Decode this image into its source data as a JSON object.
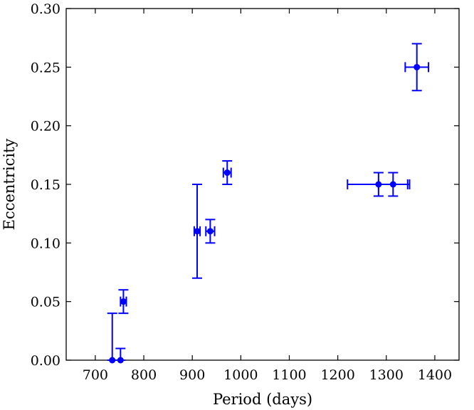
{
  "chart_data": {
    "type": "scatter",
    "title": "",
    "xlabel": "Period (days)",
    "ylabel": "Eccentricity",
    "xlim": [
      640,
      1450
    ],
    "ylim": [
      0.0,
      0.3
    ],
    "xticks": [
      700,
      800,
      900,
      1000,
      1100,
      1200,
      1300,
      1400
    ],
    "yticks": [
      0.0,
      0.05,
      0.1,
      0.15,
      0.2,
      0.25,
      0.3
    ],
    "xtick_labels": [
      "700",
      "800",
      "900",
      "1000",
      "1100",
      "1200",
      "1300",
      "1400"
    ],
    "ytick_labels": [
      "0.00",
      "0.05",
      "0.10",
      "0.15",
      "0.20",
      "0.25",
      "0.30"
    ],
    "grid": false,
    "color": "#0000ff",
    "points": [
      {
        "x": 735,
        "y": 0.0,
        "y_lo": 0.0,
        "y_hi": 0.04,
        "x_lo": 735,
        "x_hi": 735
      },
      {
        "x": 752,
        "y": 0.0,
        "y_lo": 0.0,
        "y_hi": 0.01,
        "x_lo": 752,
        "x_hi": 752
      },
      {
        "x": 758,
        "y": 0.05,
        "y_lo": 0.04,
        "y_hi": 0.06,
        "x_lo": 752,
        "x_hi": 764
      },
      {
        "x": 910,
        "y": 0.11,
        "y_lo": 0.07,
        "y_hi": 0.15,
        "x_lo": 904,
        "x_hi": 916
      },
      {
        "x": 937,
        "y": 0.11,
        "y_lo": 0.1,
        "y_hi": 0.12,
        "x_lo": 928,
        "x_hi": 946
      },
      {
        "x": 972,
        "y": 0.16,
        "y_lo": 0.15,
        "y_hi": 0.17,
        "x_lo": 964,
        "x_hi": 980
      },
      {
        "x": 1284,
        "y": 0.15,
        "y_lo": 0.14,
        "y_hi": 0.16,
        "x_lo": 1220,
        "x_hi": 1348
      },
      {
        "x": 1314,
        "y": 0.15,
        "y_lo": 0.14,
        "y_hi": 0.16,
        "x_lo": 1284,
        "x_hi": 1344
      },
      {
        "x": 1363,
        "y": 0.25,
        "y_lo": 0.23,
        "y_hi": 0.27,
        "x_lo": 1339,
        "x_hi": 1387
      }
    ]
  }
}
